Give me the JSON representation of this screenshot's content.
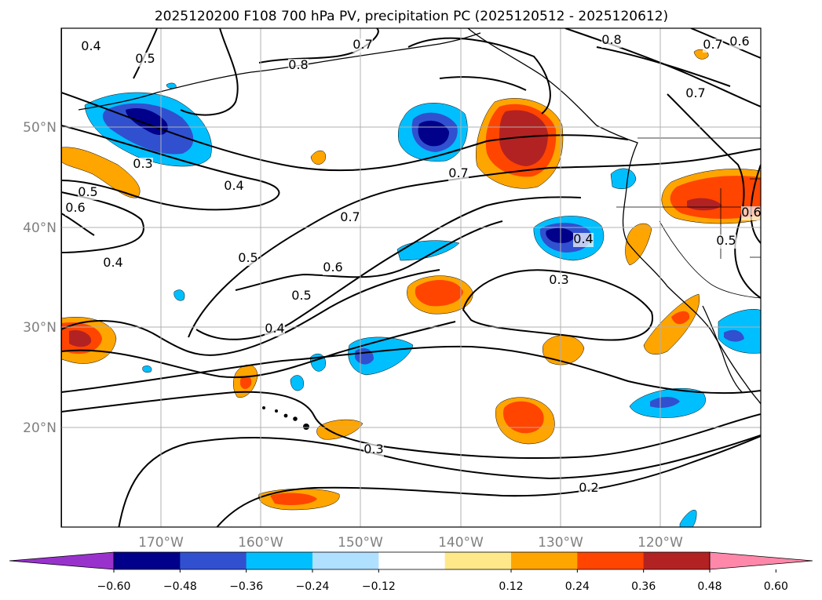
{
  "chart_data": {
    "type": "map",
    "title": "2025120200 F108 700 hPa PV, precipitation PC (2025120512 - 2025120612)",
    "lon_ticks": [
      "170°W",
      "160°W",
      "150°W",
      "140°W",
      "130°W",
      "120°W"
    ],
    "lat_ticks": [
      "50°N",
      "40°N",
      "30°N",
      "20°N"
    ],
    "extent": {
      "lon": [
        -180,
        -110
      ],
      "lat": [
        10,
        60
      ]
    },
    "grid": true,
    "colorbar": {
      "ticks": [
        "−0.60",
        "−0.48",
        "−0.36",
        "−0.24",
        "−0.12",
        "0.12",
        "0.24",
        "0.36",
        "0.48",
        "0.60"
      ],
      "colors": [
        "#9932cc",
        "#00008b",
        "#3050d0",
        "#00bfff",
        "#b0e0ff",
        "#ffffff",
        "#ffe88a",
        "#ffa500",
        "#ff4500",
        "#b22222",
        "#ff88aa"
      ],
      "extend": "both"
    },
    "contour_labels": [
      "0.4",
      "0.5",
      "0.8",
      "0.7",
      "0.8",
      "0.7",
      "0.6",
      "0.7",
      "0.3",
      "0.4",
      "0.5",
      "0.6",
      "0.7",
      "0.4",
      "0.7",
      "0.5",
      "0.6",
      "0.4",
      "0.5",
      "0.3",
      "0.4",
      "0.3",
      "0.2",
      "0.5",
      "0.6"
    ]
  }
}
